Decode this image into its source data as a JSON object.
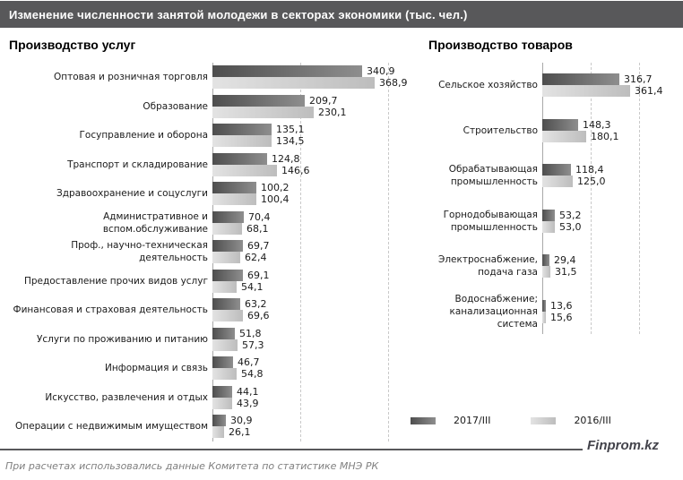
{
  "header": {
    "title": "Изменение численности занятой молодежи в секторах экономики (тыс. чел.)"
  },
  "chart_data": [
    {
      "type": "bar",
      "orientation": "horizontal",
      "title": "Производство услуг",
      "categories": [
        "Оптовая и розничная торговля",
        "Образование",
        "Госуправление и оборона",
        "Транспорт и складирование",
        "Здравоохранение и соцуслуги",
        "Административное и вспом.обслуживание",
        "Проф., научно-техническая деятельность",
        "Предоставление прочих видов услуг",
        "Финансовая и страховая деятельность",
        "Услуги по проживанию и питанию",
        "Информация и связь",
        "Искусство, развлечения и отдых",
        "Операции с недвижимым имуществом"
      ],
      "series": [
        {
          "name": "2017/III",
          "values": [
            340.9,
            209.7,
            135.1,
            124.8,
            100.2,
            70.4,
            69.7,
            69.1,
            63.2,
            51.8,
            46.7,
            44.1,
            30.9
          ]
        },
        {
          "name": "2016/III",
          "values": [
            368.9,
            230.1,
            134.5,
            146.6,
            100.4,
            68.1,
            62.4,
            54.1,
            69.6,
            57.3,
            54.8,
            43.9,
            26.1
          ]
        }
      ],
      "xlim": [
        0,
        465
      ],
      "gridline_values": [
        200,
        400
      ],
      "value_label_decimals": 1,
      "decimal_separator": ","
    },
    {
      "type": "bar",
      "orientation": "horizontal",
      "title": "Производство товаров",
      "categories": [
        "Сельское хозяйство",
        "Строительство",
        "Обрабатывающая промышленность",
        "Горнодобывающая промышленность",
        "Электроснабжение, подача газа",
        "Водоснабжение; канализационная система"
      ],
      "series": [
        {
          "name": "2017/III",
          "values": [
            316.7,
            148.3,
            118.4,
            53.2,
            29.4,
            13.6
          ]
        },
        {
          "name": "2016/III",
          "values": [
            361.4,
            180.1,
            125.0,
            53.0,
            31.5,
            15.6
          ]
        }
      ],
      "xlim": [
        0,
        480
      ],
      "gridline_values": [
        200,
        400
      ],
      "value_label_decimals": 1,
      "decimal_separator": ","
    }
  ],
  "legend": {
    "items": [
      {
        "label": "2017/III",
        "swatch": "dark"
      },
      {
        "label": "2016/III",
        "swatch": "light"
      }
    ]
  },
  "footer": {
    "source_note": "При расчетах использовались данные Комитета по статистике МНЭ РК",
    "brand": "Finprom.kz"
  },
  "colors": {
    "header_bg": "#58585a",
    "bar_dark_start": "#4e4e4e",
    "bar_dark_end": "#8e8e8e",
    "bar_light_start": "#e3e3e3",
    "bar_light_end": "#bdbdbd",
    "axis": "#a8a8a8",
    "gridline": "#c9c9c9",
    "source_note_text": "#7f7f7f",
    "brand_text": "#43434b"
  }
}
